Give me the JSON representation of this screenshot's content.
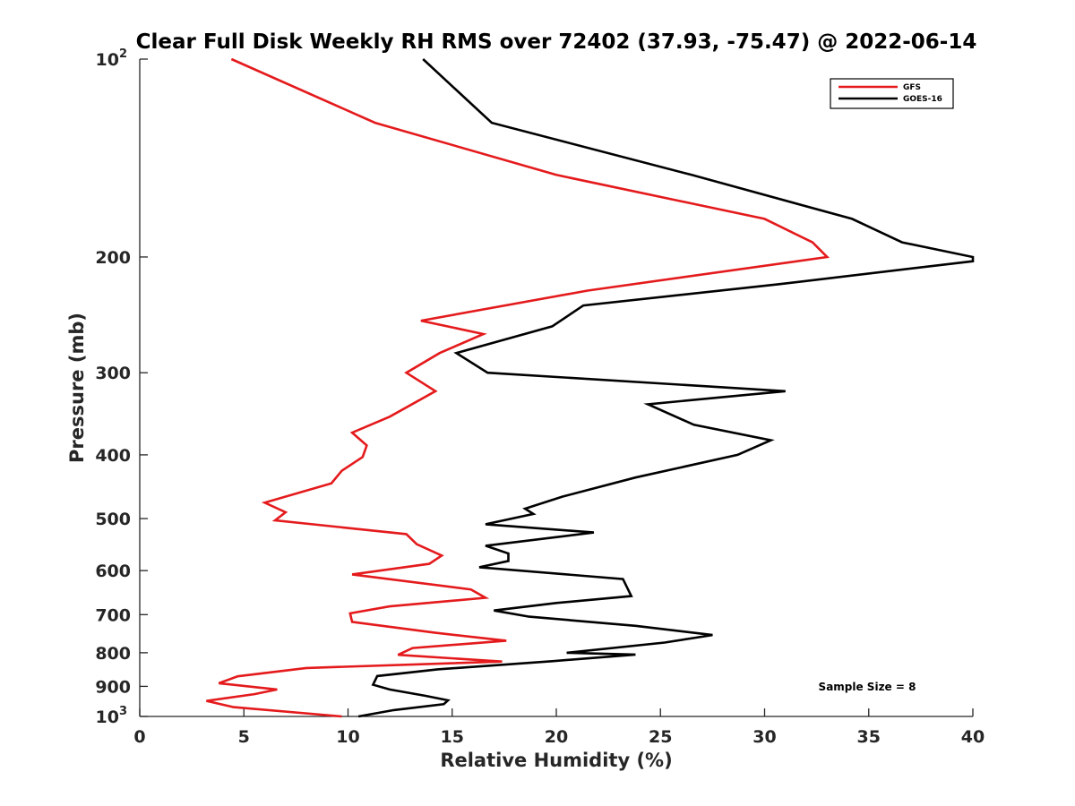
{
  "chart_data": {
    "type": "line",
    "title": "Clear Full Disk Weekly RH RMS over 72402 (37.93, -75.47) @ 2022-06-14",
    "xlabel": "Relative Humidity (%)",
    "ylabel": "Pressure (mb)",
    "xlim": [
      0,
      40
    ],
    "ylim": [
      100,
      1000
    ],
    "yscale": "log",
    "y_reversed": true,
    "x_ticks": [
      "0",
      "5",
      "10",
      "15",
      "20",
      "25",
      "30",
      "35",
      "40"
    ],
    "y_ticks": [
      {
        "value": 100,
        "label": "10",
        "sup": "2"
      },
      {
        "value": 200,
        "label": "200",
        "sup": ""
      },
      {
        "value": 300,
        "label": "300",
        "sup": ""
      },
      {
        "value": 400,
        "label": "400",
        "sup": ""
      },
      {
        "value": 500,
        "label": "500",
        "sup": ""
      },
      {
        "value": 600,
        "label": "600",
        "sup": ""
      },
      {
        "value": 700,
        "label": "700",
        "sup": ""
      },
      {
        "value": 800,
        "label": "800",
        "sup": ""
      },
      {
        "value": 900,
        "label": "900",
        "sup": ""
      },
      {
        "value": 1000,
        "label": "10",
        "sup": "3"
      }
    ],
    "legend_position": "top-right",
    "series": [
      {
        "name": "GFS",
        "color": "#e41a1c",
        "points": [
          [
            4.4,
            100
          ],
          [
            11.3,
            125
          ],
          [
            20.0,
            150
          ],
          [
            30.0,
            175
          ],
          [
            32.3,
            190
          ],
          [
            33.0,
            200
          ],
          [
            21.5,
            225
          ],
          [
            13.5,
            250
          ],
          [
            16.5,
            262
          ],
          [
            14.4,
            280
          ],
          [
            12.8,
            300
          ],
          [
            14.2,
            320
          ],
          [
            12.0,
            350
          ],
          [
            10.2,
            370
          ],
          [
            10.9,
            387
          ],
          [
            10.7,
            403
          ],
          [
            9.7,
            423
          ],
          [
            9.2,
            442
          ],
          [
            6.0,
            473
          ],
          [
            7.0,
            489
          ],
          [
            6.5,
            503
          ],
          [
            12.8,
            528
          ],
          [
            13.3,
            547
          ],
          [
            14.5,
            569
          ],
          [
            13.9,
            586
          ],
          [
            10.2,
            608
          ],
          [
            15.9,
            641
          ],
          [
            16.6,
            660
          ],
          [
            12.0,
            680
          ],
          [
            10.1,
            697
          ],
          [
            10.2,
            718
          ],
          [
            14.2,
            746
          ],
          [
            17.6,
            767
          ],
          [
            13.1,
            787
          ],
          [
            12.4,
            806
          ],
          [
            17.4,
            825
          ],
          [
            8.0,
            844
          ],
          [
            4.7,
            869
          ],
          [
            3.8,
            890
          ],
          [
            6.6,
            910
          ],
          [
            5.5,
            925
          ],
          [
            3.2,
            947
          ],
          [
            4.5,
            968
          ],
          [
            9.7,
            1000
          ]
        ]
      },
      {
        "name": "GOES-16",
        "color": "#000000",
        "points": [
          [
            13.6,
            100
          ],
          [
            16.9,
            125
          ],
          [
            26.5,
            150
          ],
          [
            34.2,
            175
          ],
          [
            36.6,
            190
          ],
          [
            40.0,
            200
          ],
          [
            40.0,
            203
          ],
          [
            30.7,
            220
          ],
          [
            21.3,
            237
          ],
          [
            19.8,
            255
          ],
          [
            15.2,
            280
          ],
          [
            16.7,
            300
          ],
          [
            31.0,
            320
          ],
          [
            24.4,
            335
          ],
          [
            26.6,
            360
          ],
          [
            30.3,
            380
          ],
          [
            28.7,
            400
          ],
          [
            23.8,
            433
          ],
          [
            20.3,
            463
          ],
          [
            18.5,
            483
          ],
          [
            18.9,
            492
          ],
          [
            16.6,
            510
          ],
          [
            21.8,
            525
          ],
          [
            16.6,
            550
          ],
          [
            17.7,
            565
          ],
          [
            17.7,
            580
          ],
          [
            16.3,
            593
          ],
          [
            23.2,
            618
          ],
          [
            23.6,
            656
          ],
          [
            20.0,
            672
          ],
          [
            17.0,
            690
          ],
          [
            18.7,
            705
          ],
          [
            23.8,
            728
          ],
          [
            27.5,
            752
          ],
          [
            25.2,
            772
          ],
          [
            20.5,
            800
          ],
          [
            23.8,
            805
          ],
          [
            19.8,
            824
          ],
          [
            14.3,
            848
          ],
          [
            11.4,
            868
          ],
          [
            11.2,
            895
          ],
          [
            12.0,
            910
          ],
          [
            13.7,
            930
          ],
          [
            14.8,
            945
          ],
          [
            14.6,
            958
          ],
          [
            12.2,
            978
          ],
          [
            10.5,
            1000
          ]
        ]
      }
    ],
    "annotation": "Sample Size = 8"
  }
}
